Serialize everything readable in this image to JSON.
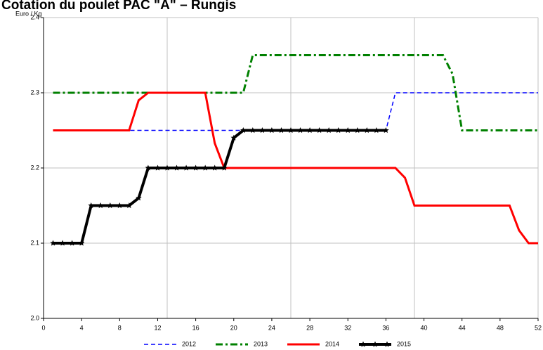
{
  "chart_data": {
    "type": "line",
    "title": "Cotation du poulet PAC \"A\" – Rungis",
    "y_label": "Euro / Kg",
    "x": [
      1,
      2,
      3,
      4,
      5,
      6,
      7,
      8,
      9,
      10,
      11,
      12,
      13,
      14,
      15,
      16,
      17,
      18,
      19,
      20,
      21,
      22,
      23,
      24,
      25,
      26,
      27,
      28,
      29,
      30,
      31,
      32,
      33,
      34,
      35,
      36,
      37,
      38,
      39,
      40,
      41,
      42,
      43,
      44,
      45,
      46,
      47,
      48,
      49,
      50,
      51,
      52
    ],
    "series": [
      {
        "name": "2012",
        "color": "#0000ff",
        "dash": "dashed",
        "width": 1.5,
        "marker": "none",
        "values": [
          2.25,
          2.25,
          2.25,
          2.25,
          2.25,
          2.25,
          2.25,
          2.25,
          2.25,
          2.25,
          2.25,
          2.25,
          2.25,
          2.25,
          2.25,
          2.25,
          2.25,
          2.25,
          2.25,
          2.25,
          2.25,
          2.25,
          2.25,
          2.25,
          2.25,
          2.25,
          2.25,
          2.25,
          2.25,
          2.25,
          2.25,
          2.25,
          2.25,
          2.25,
          2.25,
          2.25,
          2.3,
          2.3,
          2.3,
          2.3,
          2.3,
          2.3,
          2.3,
          2.3,
          2.3,
          2.3,
          2.3,
          2.3,
          2.3,
          2.3,
          2.3,
          2.3
        ]
      },
      {
        "name": "2013",
        "color": "#008000",
        "dash": "dashdot",
        "width": 3,
        "marker": "none",
        "values": [
          2.3,
          2.3,
          2.3,
          2.3,
          2.3,
          2.3,
          2.3,
          2.3,
          2.3,
          2.3,
          2.3,
          2.3,
          2.3,
          2.3,
          2.3,
          2.3,
          2.3,
          2.3,
          2.3,
          2.3,
          2.3,
          2.35,
          2.35,
          2.35,
          2.35,
          2.35,
          2.35,
          2.35,
          2.35,
          2.35,
          2.35,
          2.35,
          2.35,
          2.35,
          2.35,
          2.35,
          2.35,
          2.35,
          2.35,
          2.35,
          2.35,
          2.35,
          2.325,
          2.25,
          2.25,
          2.25,
          2.25,
          2.25,
          2.25,
          2.25,
          2.25,
          2.25
        ]
      },
      {
        "name": "2014",
        "color": "#ff0000",
        "dash": "solid",
        "width": 3,
        "marker": "none",
        "values": [
          2.25,
          2.25,
          2.25,
          2.25,
          2.25,
          2.25,
          2.25,
          2.25,
          2.25,
          2.29,
          2.3,
          2.3,
          2.3,
          2.3,
          2.3,
          2.3,
          2.3,
          2.233,
          2.2,
          2.2,
          2.2,
          2.2,
          2.2,
          2.2,
          2.2,
          2.2,
          2.2,
          2.2,
          2.2,
          2.2,
          2.2,
          2.2,
          2.2,
          2.2,
          2.2,
          2.2,
          2.2,
          2.187,
          2.15,
          2.15,
          2.15,
          2.15,
          2.15,
          2.15,
          2.15,
          2.15,
          2.15,
          2.15,
          2.15,
          2.117,
          2.1,
          2.1
        ]
      },
      {
        "name": "2015",
        "color": "#000000",
        "dash": "solid",
        "width": 4,
        "marker": "star",
        "values": [
          2.1,
          2.1,
          2.1,
          2.1,
          2.15,
          2.15,
          2.15,
          2.15,
          2.15,
          2.16,
          2.2,
          2.2,
          2.2,
          2.2,
          2.2,
          2.2,
          2.2,
          2.2,
          2.2,
          2.24,
          2.25,
          2.25,
          2.25,
          2.25,
          2.25,
          2.25,
          2.25,
          2.25,
          2.25,
          2.25,
          2.25,
          2.25,
          2.25,
          2.25,
          2.25,
          2.25,
          null,
          null,
          null,
          null,
          null,
          null,
          null,
          null,
          null,
          null,
          null,
          null,
          null,
          null,
          null,
          null
        ]
      }
    ],
    "xlim": [
      0,
      52
    ],
    "xticks": [
      0,
      4,
      8,
      12,
      16,
      20,
      24,
      28,
      32,
      36,
      40,
      44,
      48,
      52
    ],
    "xgrid": [
      13,
      26,
      39,
      52
    ],
    "ylim": [
      2,
      2.4
    ],
    "yticks": [
      {
        "value": 2,
        "label": "2.0"
      },
      2.1,
      2.2,
      2.3,
      2.4
    ],
    "grid": true,
    "legend": "bottom"
  }
}
